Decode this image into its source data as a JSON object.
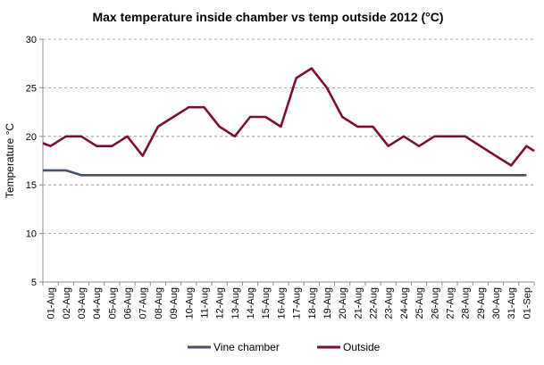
{
  "chart_data": {
    "type": "line",
    "title": "Max temperature inside chamber vs temp outside 2012 (°C)",
    "xlabel": "",
    "ylabel": "Temperature °C",
    "ylim": [
      5,
      30
    ],
    "yticks": [
      5,
      10,
      15,
      20,
      25,
      30
    ],
    "grid": "horizontal-dashed",
    "legend": "bottom",
    "categories": [
      "01-Aug",
      "02-Aug",
      "03-Aug",
      "04-Aug",
      "05-Aug",
      "06-Aug",
      "07-Aug",
      "08-Aug",
      "09-Aug",
      "10-Aug",
      "11-Aug",
      "12-Aug",
      "13-Aug",
      "14-Aug",
      "15-Aug",
      "16-Aug",
      "17-Aug",
      "18-Aug",
      "19-Aug",
      "20-Aug",
      "21-Aug",
      "22-Aug",
      "23-Aug",
      "24-Aug",
      "25-Aug",
      "26-Aug",
      "27-Aug",
      "28-Aug",
      "29-Aug",
      "30-Aug",
      "31-Aug",
      "01-Sep"
    ],
    "series": [
      {
        "name": "Vine chamber",
        "color": "#4a5068",
        "x": [
          0,
          0.5,
          1.5,
          2.5,
          31.5
        ],
        "values": [
          16.5,
          16.5,
          16.5,
          16,
          16
        ]
      },
      {
        "name": "Outside",
        "color": "#7a1030",
        "x": [
          0,
          0.5,
          1.5,
          2.5,
          3.5,
          4.5,
          5.5,
          6.5,
          7.5,
          8.5,
          9.5,
          10.5,
          11.5,
          12.5,
          13.5,
          14.5,
          15.5,
          16.5,
          17.5,
          18.5,
          19.5,
          20.5,
          21.5,
          22.5,
          23.5,
          24.5,
          25.5,
          26.5,
          27.5,
          28.5,
          29.5,
          30.5,
          31.5,
          32
        ],
        "values": [
          19.3,
          19,
          20,
          20,
          19,
          19,
          20,
          18,
          21,
          22,
          23,
          23,
          21,
          20,
          22,
          22,
          21,
          26,
          27,
          25,
          22,
          21,
          21,
          19,
          20,
          19,
          20,
          20,
          20,
          19,
          18,
          17,
          19,
          18.5
        ]
      }
    ]
  }
}
